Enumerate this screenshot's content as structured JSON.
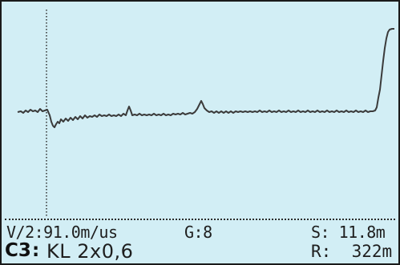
{
  "screen": {
    "velocity": "V/2:91.0m/us",
    "gain": "G:8",
    "start": "S: 11.8m",
    "channel": "C3",
    "channel_separator": ":",
    "cable_type": "KL 2x0,6",
    "range": "R:  322m"
  },
  "colors": {
    "background": "#d2eef5",
    "trace": "#3b3b3b",
    "cursor": "#2d2d2d",
    "text": "#1e1e1e"
  }
}
